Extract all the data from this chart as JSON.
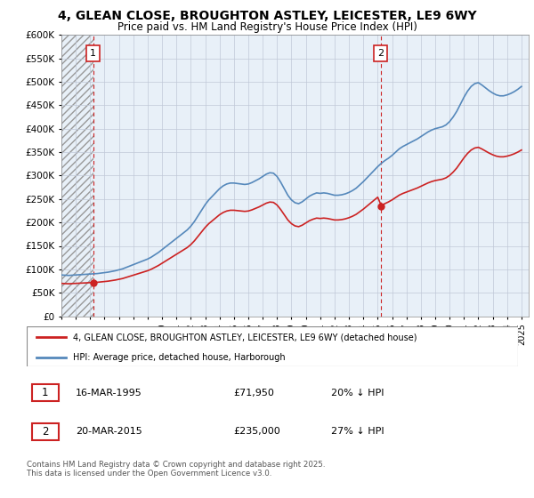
{
  "title": "4, GLEAN CLOSE, BROUGHTON ASTLEY, LEICESTER, LE9 6WY",
  "subtitle": "Price paid vs. HM Land Registry's House Price Index (HPI)",
  "ylabel_ticks": [
    "£0",
    "£50K",
    "£100K",
    "£150K",
    "£200K",
    "£250K",
    "£300K",
    "£350K",
    "£400K",
    "£450K",
    "£500K",
    "£550K",
    "£600K"
  ],
  "ylim": [
    0,
    600000
  ],
  "ytick_vals": [
    0,
    50000,
    100000,
    150000,
    200000,
    250000,
    300000,
    350000,
    400000,
    450000,
    500000,
    550000,
    600000
  ],
  "background_color": "#ffffff",
  "chart_bg_color": "#e8f0f8",
  "grid_color": "#c0c8d8",
  "hatch_color": "#c8c8c8",
  "red_color": "#cc2222",
  "blue_color": "#5588bb",
  "annotation1_label": "1",
  "annotation2_label": "2",
  "sale1_x": 1995.21,
  "sale1_y": 71950,
  "sale2_x": 2015.21,
  "sale2_y": 235000,
  "legend_line1": "4, GLEAN CLOSE, BROUGHTON ASTLEY, LEICESTER, LE9 6WY (detached house)",
  "legend_line2": "HPI: Average price, detached house, Harborough",
  "table_row1": [
    "1",
    "16-MAR-1995",
    "£71,950",
    "20% ↓ HPI"
  ],
  "table_row2": [
    "2",
    "20-MAR-2015",
    "£235,000",
    "27% ↓ HPI"
  ],
  "footer": "Contains HM Land Registry data © Crown copyright and database right 2025.\nThis data is licensed under the Open Government Licence v3.0.",
  "xmin": 1993.0,
  "xmax": 2025.5,
  "hpi_years": [
    1993.0,
    1993.25,
    1993.5,
    1993.75,
    1994.0,
    1994.25,
    1994.5,
    1994.75,
    1995.0,
    1995.25,
    1995.5,
    1995.75,
    1996.0,
    1996.25,
    1996.5,
    1996.75,
    1997.0,
    1997.25,
    1997.5,
    1997.75,
    1998.0,
    1998.25,
    1998.5,
    1998.75,
    1999.0,
    1999.25,
    1999.5,
    1999.75,
    2000.0,
    2000.25,
    2000.5,
    2000.75,
    2001.0,
    2001.25,
    2001.5,
    2001.75,
    2002.0,
    2002.25,
    2002.5,
    2002.75,
    2003.0,
    2003.25,
    2003.5,
    2003.75,
    2004.0,
    2004.25,
    2004.5,
    2004.75,
    2005.0,
    2005.25,
    2005.5,
    2005.75,
    2006.0,
    2006.25,
    2006.5,
    2006.75,
    2007.0,
    2007.25,
    2007.5,
    2007.75,
    2008.0,
    2008.25,
    2008.5,
    2008.75,
    2009.0,
    2009.25,
    2009.5,
    2009.75,
    2010.0,
    2010.25,
    2010.5,
    2010.75,
    2011.0,
    2011.25,
    2011.5,
    2011.75,
    2012.0,
    2012.25,
    2012.5,
    2012.75,
    2013.0,
    2013.25,
    2013.5,
    2013.75,
    2014.0,
    2014.25,
    2014.5,
    2014.75,
    2015.0,
    2015.25,
    2015.5,
    2015.75,
    2016.0,
    2016.25,
    2016.5,
    2016.75,
    2017.0,
    2017.25,
    2017.5,
    2017.75,
    2018.0,
    2018.25,
    2018.5,
    2018.75,
    2019.0,
    2019.25,
    2019.5,
    2019.75,
    2020.0,
    2020.25,
    2020.5,
    2020.75,
    2021.0,
    2021.25,
    2021.5,
    2021.75,
    2022.0,
    2022.25,
    2022.5,
    2022.75,
    2023.0,
    2023.25,
    2023.5,
    2023.75,
    2024.0,
    2024.25,
    2024.5,
    2024.75,
    2025.0
  ],
  "hpi_values": [
    88000,
    87500,
    87000,
    87500,
    88000,
    88500,
    89000,
    89500,
    90000,
    90500,
    91000,
    92000,
    93000,
    94000,
    95500,
    97000,
    99000,
    101000,
    104000,
    107000,
    110000,
    113000,
    116000,
    119000,
    122000,
    126000,
    131000,
    136000,
    142000,
    148000,
    154000,
    160000,
    166000,
    172000,
    178000,
    184000,
    192000,
    202000,
    214000,
    226000,
    238000,
    248000,
    256000,
    264000,
    272000,
    278000,
    282000,
    284000,
    284000,
    283000,
    282000,
    281000,
    282000,
    285000,
    289000,
    293000,
    298000,
    303000,
    306000,
    305000,
    298000,
    286000,
    272000,
    258000,
    248000,
    242000,
    240000,
    244000,
    250000,
    256000,
    260000,
    263000,
    262000,
    263000,
    262000,
    260000,
    258000,
    258000,
    259000,
    261000,
    264000,
    268000,
    273000,
    280000,
    287000,
    295000,
    303000,
    311000,
    319000,
    326000,
    332000,
    337000,
    343000,
    350000,
    357000,
    362000,
    366000,
    370000,
    374000,
    378000,
    383000,
    388000,
    393000,
    397000,
    400000,
    402000,
    404000,
    408000,
    415000,
    425000,
    437000,
    452000,
    467000,
    480000,
    490000,
    496000,
    498000,
    493000,
    487000,
    481000,
    476000,
    472000,
    470000,
    470000,
    472000,
    475000,
    479000,
    484000,
    490000
  ]
}
